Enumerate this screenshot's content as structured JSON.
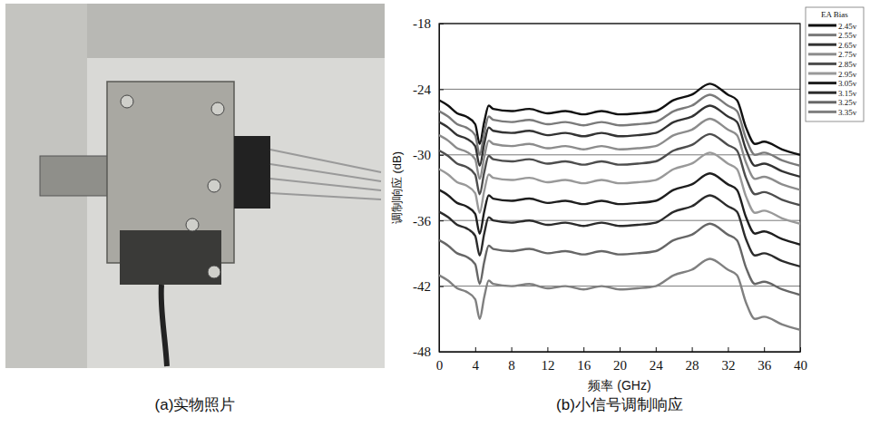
{
  "photo": {
    "caption": "(a)实物照片"
  },
  "chart_data": {
    "type": "line",
    "caption": "(b)小信号调制响应",
    "x_label": "频率 (GHz)",
    "y_label": "调制响应 (dB)",
    "legend_title": "EA Bias",
    "legend": "right",
    "grid": true,
    "xlim": [
      0,
      40
    ],
    "xticks": [
      0,
      4,
      8,
      12,
      16,
      20,
      24,
      28,
      32,
      36,
      40
    ],
    "ylim": [
      -48,
      -18
    ],
    "yticks": [
      -48,
      -42,
      -36,
      -30,
      -24,
      -18
    ],
    "x": [
      0,
      1,
      2,
      3,
      4,
      4.5,
      5,
      5.5,
      6,
      8,
      10,
      12,
      14,
      16,
      18,
      20,
      22,
      24,
      26,
      28,
      30,
      32,
      33,
      34,
      35,
      36,
      38,
      40
    ],
    "series": [
      {
        "name": "2.45v",
        "color": "#111111",
        "values": [
          -25.0,
          -25.5,
          -26.2,
          -26.5,
          -27.2,
          -29.0,
          -27.0,
          -25.5,
          -25.8,
          -26.0,
          -25.8,
          -26.2,
          -26.0,
          -26.3,
          -26.0,
          -26.3,
          -26.2,
          -26.0,
          -25.0,
          -24.5,
          -23.5,
          -24.5,
          -25.0,
          -27.5,
          -29.0,
          -28.8,
          -29.5,
          -30.0
        ]
      },
      {
        "name": "2.55v",
        "color": "#7a7a7a",
        "values": [
          -26.0,
          -26.5,
          -27.2,
          -27.5,
          -28.2,
          -30.0,
          -28.0,
          -26.5,
          -26.8,
          -27.0,
          -26.8,
          -27.2,
          -27.0,
          -27.3,
          -27.0,
          -27.3,
          -27.2,
          -27.0,
          -26.0,
          -25.5,
          -24.5,
          -25.5,
          -26.0,
          -28.5,
          -30.0,
          -29.8,
          -30.5,
          -31.0
        ]
      },
      {
        "name": "2.65v",
        "color": "#333333",
        "values": [
          -27.0,
          -27.5,
          -28.2,
          -28.5,
          -29.2,
          -31.0,
          -29.0,
          -27.5,
          -27.8,
          -28.0,
          -27.8,
          -28.2,
          -28.0,
          -28.3,
          -28.0,
          -28.3,
          -28.2,
          -28.0,
          -27.0,
          -26.5,
          -25.5,
          -26.5,
          -27.0,
          -29.5,
          -31.0,
          -30.8,
          -31.5,
          -32.0
        ]
      },
      {
        "name": "2.75v",
        "color": "#8c8c8c",
        "values": [
          -28.2,
          -28.7,
          -29.4,
          -29.7,
          -30.4,
          -32.2,
          -30.2,
          -28.7,
          -29.0,
          -29.2,
          -29.0,
          -29.4,
          -29.2,
          -29.5,
          -29.2,
          -29.5,
          -29.4,
          -29.2,
          -28.2,
          -27.7,
          -26.7,
          -27.7,
          -28.2,
          -30.7,
          -32.2,
          -32.0,
          -32.7,
          -33.2
        ]
      },
      {
        "name": "2.85v",
        "color": "#4d4d4d",
        "values": [
          -29.6,
          -30.1,
          -30.8,
          -31.1,
          -31.8,
          -33.6,
          -31.6,
          -30.1,
          -30.4,
          -30.6,
          -30.4,
          -30.8,
          -30.6,
          -30.9,
          -30.6,
          -30.9,
          -30.8,
          -30.6,
          -29.6,
          -29.1,
          -28.1,
          -29.1,
          -29.6,
          -32.1,
          -33.6,
          -33.4,
          -34.1,
          -34.6
        ]
      },
      {
        "name": "2.95v",
        "color": "#999999",
        "values": [
          -31.3,
          -31.8,
          -32.5,
          -32.8,
          -33.5,
          -35.3,
          -33.3,
          -31.8,
          -32.1,
          -32.3,
          -32.1,
          -32.5,
          -32.3,
          -32.6,
          -32.3,
          -32.6,
          -32.5,
          -32.3,
          -31.3,
          -30.8,
          -29.8,
          -30.8,
          -31.3,
          -33.8,
          -35.3,
          -35.1,
          -35.8,
          -36.3
        ]
      },
      {
        "name": "3.05v",
        "color": "#1e1e1e",
        "values": [
          -33.2,
          -33.7,
          -34.4,
          -34.7,
          -35.4,
          -37.2,
          -35.2,
          -33.7,
          -34.0,
          -34.2,
          -34.0,
          -34.4,
          -34.2,
          -34.5,
          -34.2,
          -34.5,
          -34.4,
          -34.2,
          -33.2,
          -32.7,
          -31.7,
          -32.7,
          -33.2,
          -35.7,
          -37.2,
          -37.0,
          -37.7,
          -38.2
        ]
      },
      {
        "name": "3.15v",
        "color": "#2b2b2b",
        "values": [
          -35.2,
          -35.7,
          -36.4,
          -36.7,
          -37.4,
          -39.2,
          -37.2,
          -35.7,
          -36.0,
          -36.2,
          -36.0,
          -36.4,
          -36.2,
          -36.5,
          -36.2,
          -36.5,
          -36.4,
          -36.2,
          -35.2,
          -34.7,
          -33.7,
          -34.7,
          -35.2,
          -37.7,
          -39.2,
          -39.0,
          -39.7,
          -40.2
        ]
      },
      {
        "name": "3.25v",
        "color": "#666666",
        "values": [
          -37.8,
          -38.3,
          -39.0,
          -39.3,
          -40.0,
          -41.8,
          -39.8,
          -38.3,
          -38.6,
          -38.8,
          -38.6,
          -39.0,
          -38.8,
          -39.1,
          -38.8,
          -39.1,
          -39.0,
          -38.8,
          -37.8,
          -37.3,
          -36.3,
          -37.3,
          -37.8,
          -40.3,
          -41.8,
          -41.6,
          -42.3,
          -42.8
        ]
      },
      {
        "name": "3.35v",
        "color": "#808080",
        "values": [
          -41.0,
          -41.5,
          -42.2,
          -42.5,
          -43.2,
          -45.0,
          -43.0,
          -41.5,
          -41.8,
          -42.0,
          -41.8,
          -42.2,
          -42.0,
          -42.3,
          -42.0,
          -42.3,
          -42.2,
          -42.0,
          -41.0,
          -40.5,
          -39.5,
          -40.5,
          -41.0,
          -43.5,
          -45.0,
          -44.8,
          -45.5,
          -46.0
        ]
      }
    ]
  }
}
